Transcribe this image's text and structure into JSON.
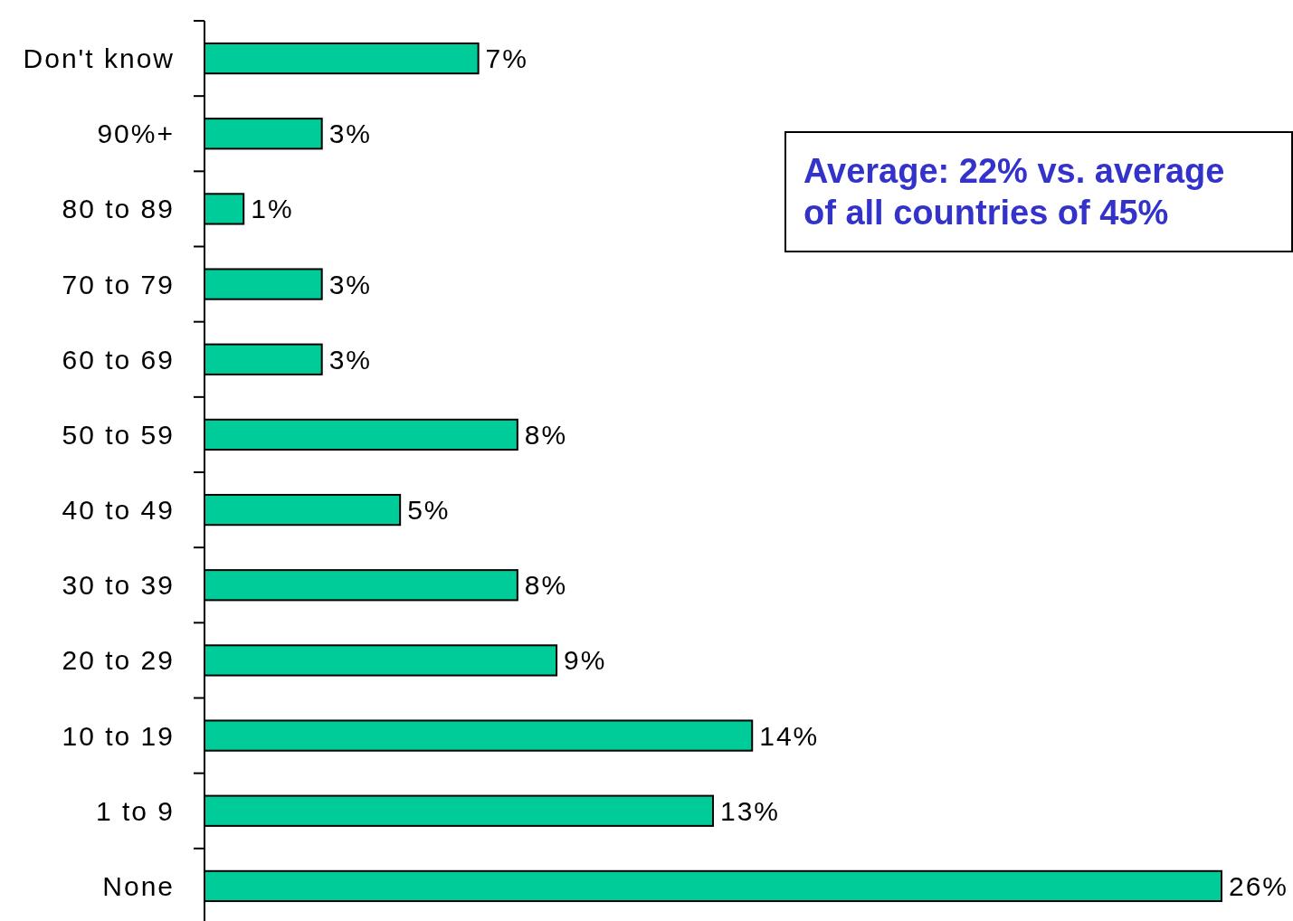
{
  "chart_data": {
    "type": "bar",
    "orientation": "horizontal",
    "categories": [
      "Don't know",
      "90%+",
      "80 to 89",
      "70 to 79",
      "60 to 69",
      "50 to 59",
      "40 to 49",
      "30 to 39",
      "20 to 29",
      "10 to 19",
      "1 to 9",
      "None"
    ],
    "values": [
      7,
      3,
      1,
      3,
      3,
      8,
      5,
      8,
      9,
      14,
      13,
      26
    ],
    "value_labels": [
      "7%",
      "3%",
      "1%",
      "3%",
      "3%",
      "8%",
      "5%",
      "8%",
      "9%",
      "14%",
      "13%",
      "26%"
    ],
    "color": "#00cc99",
    "annotations": [
      "Average: 22% vs. average of all countries of 45%"
    ]
  }
}
